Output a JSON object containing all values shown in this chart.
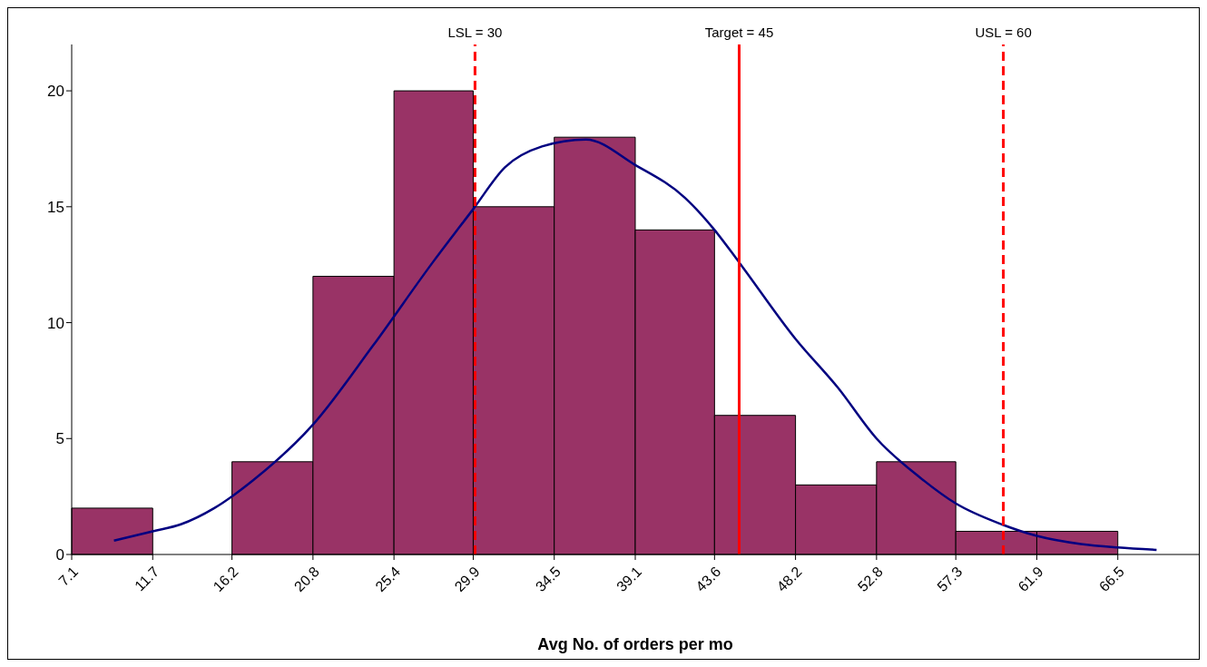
{
  "chart_data": {
    "type": "histogram",
    "xlabel": "Avg No. of orders per mo",
    "bins": [
      7.1,
      11.7,
      16.2,
      20.8,
      25.4,
      29.9,
      34.5,
      39.1,
      43.6,
      48.2,
      52.8,
      57.3,
      61.9,
      66.5
    ],
    "series": [
      {
        "color": "#993366",
        "values": [
          2,
          0,
          4,
          12,
          20,
          15,
          18,
          14,
          6,
          3,
          4,
          1,
          1
        ]
      },
      {
        "type": "line",
        "color": "#000080",
        "x": [
          9.5,
          11.7,
          13.3,
          15.2,
          17.4,
          20.8,
          24.2,
          27.6,
          29.9,
          31.7,
          33.8,
          36.3,
          39.1,
          41.9,
          43.6,
          45.0,
          48.2,
          50.6,
          52.8,
          55.3,
          57.3,
          59.9,
          61.9,
          64.4,
          66.5,
          68.7
        ],
        "values": [
          0.6,
          1.0,
          1.3,
          2.0,
          3.2,
          5.6,
          9.0,
          12.6,
          14.9,
          16.7,
          17.6,
          17.9,
          16.8,
          15.4,
          14.0,
          12.6,
          9.3,
          7.2,
          5.0,
          3.3,
          2.2,
          1.3,
          0.8,
          0.45,
          0.3,
          0.2
        ]
      }
    ],
    "xlim": [
      7.1,
      71.1
    ],
    "xticks": [
      7.1,
      11.7,
      16.2,
      20.8,
      25.4,
      29.9,
      34.5,
      39.1,
      43.6,
      48.2,
      52.8,
      57.3,
      61.9,
      66.5
    ],
    "ylim": [
      0,
      22
    ],
    "yticks": [
      0,
      5,
      10,
      15,
      20
    ],
    "grid": false,
    "ref_lines": [
      {
        "axis": "x",
        "value": 30,
        "label": "LSL = 30",
        "color": "#ff0000",
        "line_style": "dashed"
      },
      {
        "axis": "x",
        "value": 45,
        "label": "Target = 45",
        "color": "#ff0000",
        "line_style": "solid"
      },
      {
        "axis": "x",
        "value": 60,
        "label": "USL = 60",
        "color": "#ff0000",
        "line_style": "dashed"
      }
    ]
  }
}
